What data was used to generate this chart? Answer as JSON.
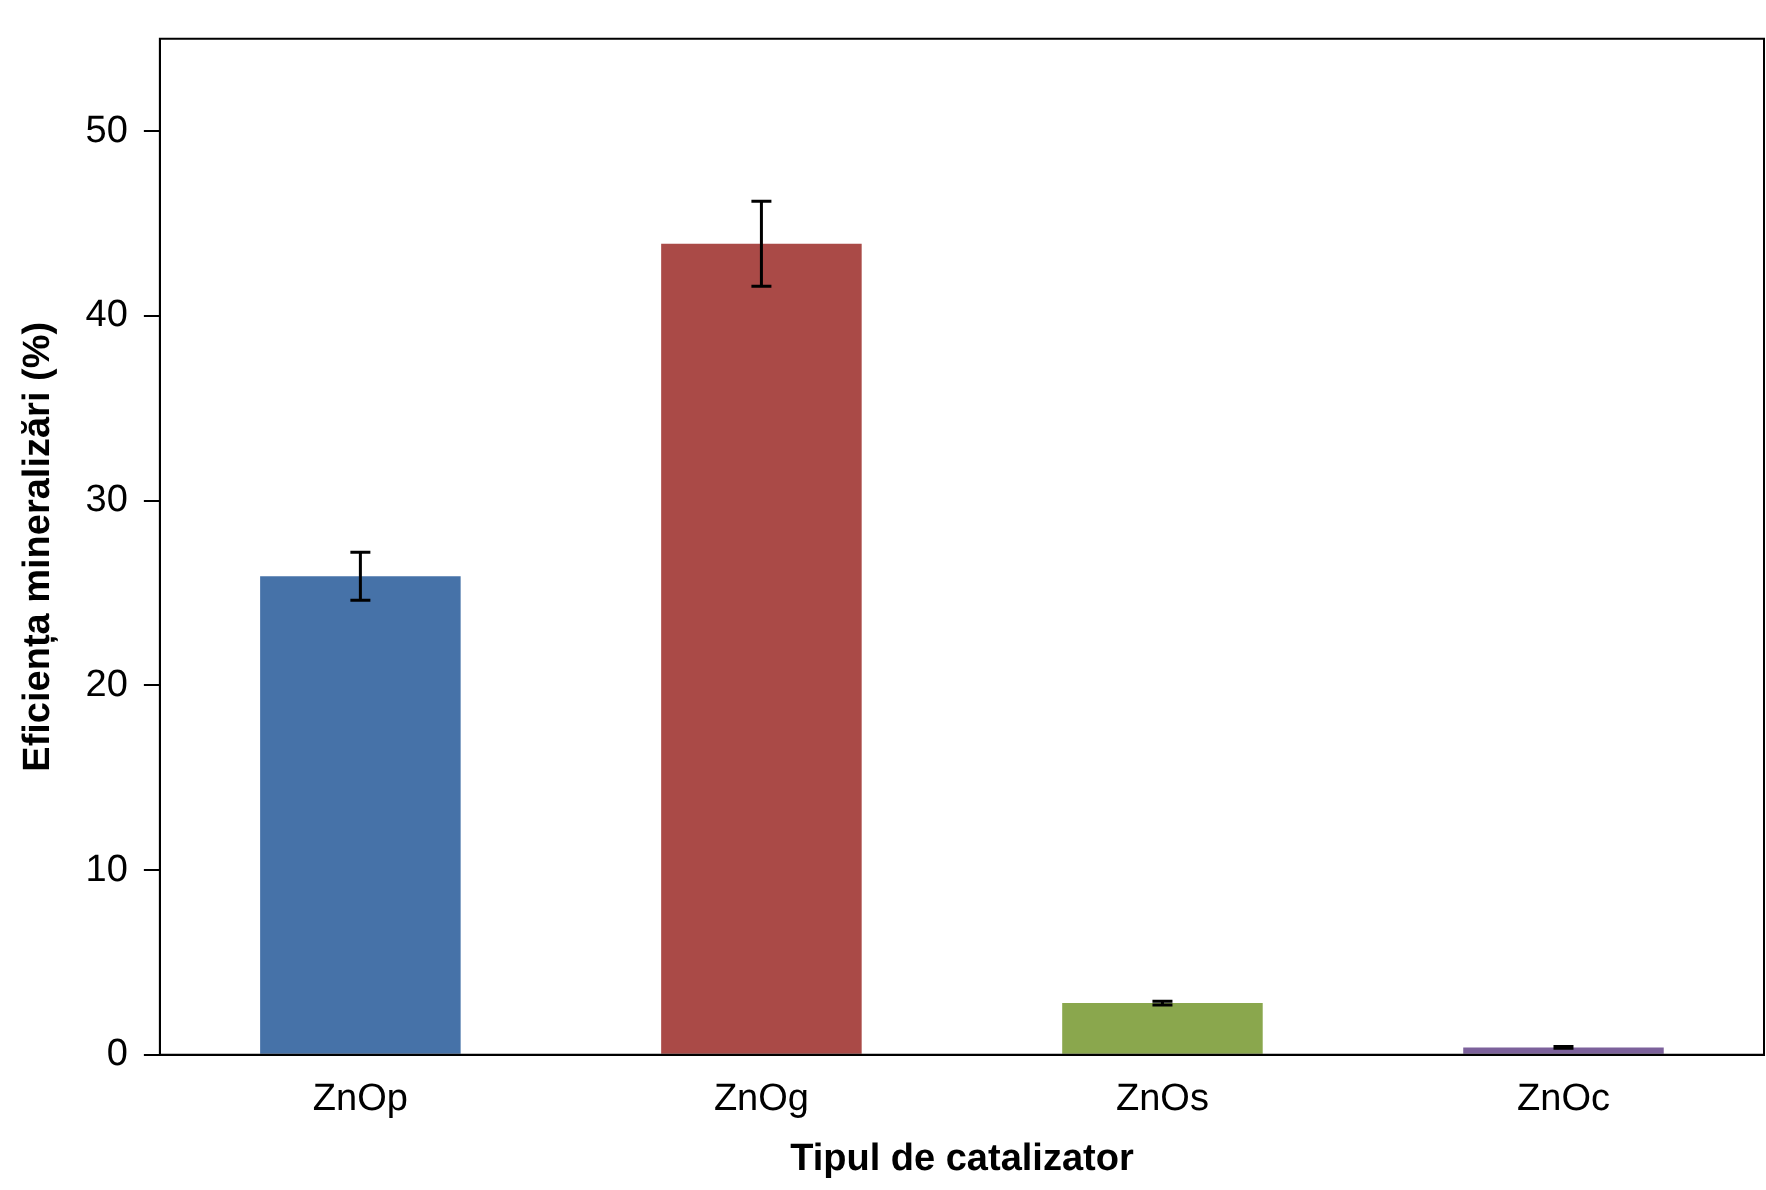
{
  "chart_data": {
    "type": "bar",
    "xlabel": "Tipul de catalizator",
    "ylabel": "Eficiența mineralizări (%)",
    "categories": [
      "ZnOp",
      "ZnOg",
      "ZnOs",
      "ZnOc"
    ],
    "values": [
      25.9,
      43.9,
      2.8,
      0.4
    ],
    "colors": [
      "#4672a8",
      "#aa4a47",
      "#8aa74d",
      "#7c619b"
    ],
    "errors": [
      1.3,
      2.3,
      0.1,
      0.05
    ],
    "ylim": [
      0,
      55
    ],
    "yticks": [
      0,
      10,
      20,
      30,
      40,
      50
    ]
  }
}
